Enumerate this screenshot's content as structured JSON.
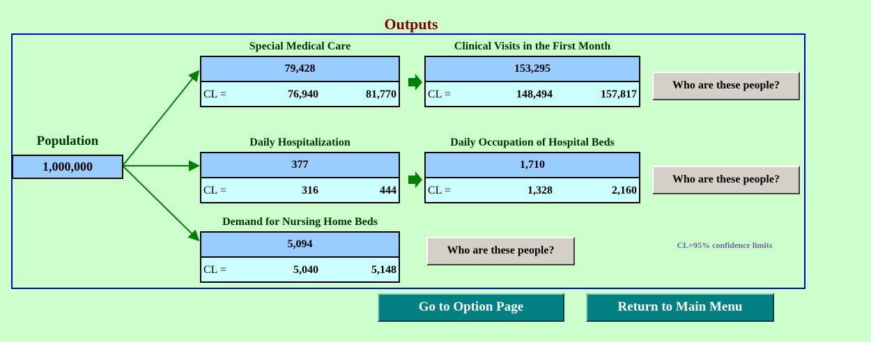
{
  "title": "Outputs",
  "population": {
    "label": "Population",
    "value": "1,000,000"
  },
  "boxes": [
    {
      "title": "Special Medical Care",
      "value": "79,428",
      "cl_label": "CL =",
      "low": "76,940",
      "high": "81,770"
    },
    {
      "title": "Clinical Visits in the First Month",
      "value": "153,295",
      "cl_label": "CL =",
      "low": "148,494",
      "high": "157,817"
    },
    {
      "title": "Daily Hospitalization",
      "value": "377",
      "cl_label": "CL =",
      "low": "316",
      "high": "444"
    },
    {
      "title": "Daily Occupation of Hospital Beds",
      "value": "1,710",
      "cl_label": "CL =",
      "low": "1,328",
      "high": "2,160"
    },
    {
      "title": "Demand for Nursing Home Beds",
      "value": "5,094",
      "cl_label": "CL =",
      "low": "5,040",
      "high": "5,148"
    }
  ],
  "buttons": [
    "Who are these people?",
    "Who are these people?",
    "Who are these people?"
  ],
  "note": "CL=95% confidence limits",
  "nav": [
    "Go to Option Page",
    "Return to Main Menu"
  ]
}
